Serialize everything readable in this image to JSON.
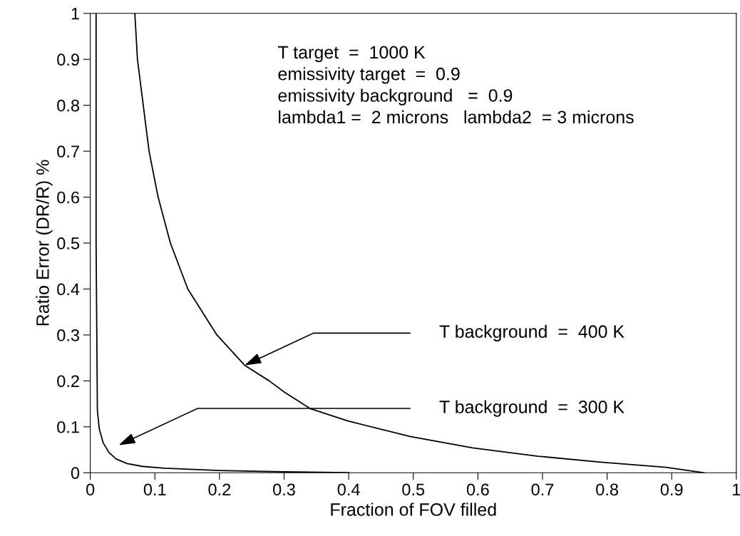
{
  "chart_data": {
    "type": "line",
    "xlabel": "Fraction of FOV filled",
    "ylabel": "Ratio Error (DR/R) %",
    "xlim": [
      0,
      1
    ],
    "ylim": [
      0,
      1
    ],
    "xticks": [
      0,
      0.1,
      0.2,
      0.3,
      0.4,
      0.5,
      0.6,
      0.7,
      0.8,
      0.9,
      1
    ],
    "yticks": [
      0,
      0.1,
      0.2,
      0.3,
      0.4,
      0.5,
      0.6,
      0.7,
      0.8,
      0.9,
      1
    ],
    "grid": false,
    "legend": false,
    "marker": "none",
    "line_style": "solid",
    "series": [
      {
        "color": "#000000",
        "x": [
          0.069,
          0.073,
          0.082,
          0.091,
          0.105,
          0.124,
          0.151,
          0.196,
          0.239,
          0.277,
          0.301,
          0.34,
          0.398,
          0.495,
          0.592,
          0.693,
          0.79,
          0.891,
          0.95
        ],
        "values": [
          1.0,
          0.9,
          0.8,
          0.7,
          0.6,
          0.5,
          0.4,
          0.3,
          0.234,
          0.2,
          0.175,
          0.14,
          0.113,
          0.079,
          0.054,
          0.036,
          0.023,
          0.012,
          0.0
        ]
      },
      {
        "color": "#000000",
        "x": [
          0.009,
          0.009,
          0.011,
          0.014,
          0.02,
          0.029,
          0.04,
          0.057,
          0.08,
          0.114,
          0.2,
          0.3,
          0.4
        ],
        "values": [
          1.0,
          0.5,
          0.135,
          0.095,
          0.065,
          0.044,
          0.03,
          0.02,
          0.014,
          0.01,
          0.005,
          0.002,
          0.0
        ]
      }
    ],
    "annotations": [
      "T target  =  1000 K",
      "emissivity target  =  0.9",
      "emissivity background   =  0.9",
      "lambda1 =  2 microns   lambda2  = 3 microns",
      "T background  =  400 K",
      "T background  =  300 K"
    ]
  }
}
